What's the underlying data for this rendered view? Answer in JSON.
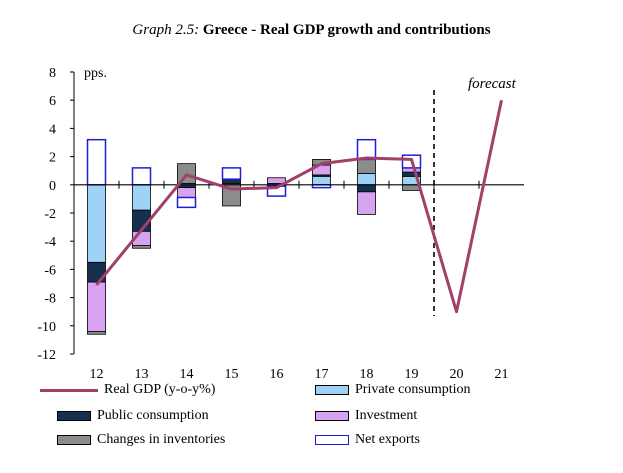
{
  "title": {
    "prefix": "Graph 2.5:",
    "main": "Greece - Real GDP growth and contributions"
  },
  "colors": {
    "real_gdp": "#a0416b",
    "private_consumption": "#9fd3f5",
    "public_consumption": "#17304d",
    "investment": "#d7a3f0",
    "changes_in_inventories": "#8c8c8c",
    "net_exports": "#1f1fd6"
  },
  "chart_data": {
    "type": "bar",
    "stacked": true,
    "title": "Greece - Real GDP growth and contributions",
    "ylabel": "pps.",
    "xlabel": "",
    "ylim": [
      -12,
      8
    ],
    "yticks": [
      8,
      6,
      4,
      2,
      0,
      -2,
      -4,
      -6,
      -8,
      -10,
      -12
    ],
    "categories": [
      "12",
      "13",
      "14",
      "15",
      "16",
      "17",
      "18",
      "19",
      "20",
      "21"
    ],
    "annotation": "forecast",
    "forecast_divider_after": "19",
    "series": [
      {
        "name": "Private consumption",
        "kind": "bar",
        "values": [
          -5.5,
          -1.8,
          0.1,
          0.1,
          0.1,
          0.6,
          0.8,
          0.6,
          null,
          null
        ]
      },
      {
        "name": "Public consumption",
        "kind": "bar",
        "values": [
          -1.4,
          -1.5,
          -0.2,
          0.3,
          -0.1,
          0.1,
          -0.5,
          0.3,
          null,
          null
        ]
      },
      {
        "name": "Investment",
        "kind": "bar",
        "values": [
          -3.5,
          -1.0,
          -0.7,
          0.0,
          0.4,
          0.7,
          -1.6,
          0.3,
          null,
          null
        ]
      },
      {
        "name": "Changes in inventories",
        "kind": "bar",
        "values": [
          -0.2,
          -0.2,
          1.4,
          -1.5,
          0.0,
          0.4,
          1.0,
          -0.4,
          null,
          null
        ]
      },
      {
        "name": "Net exports",
        "kind": "bar",
        "values": [
          3.2,
          1.2,
          -0.7,
          0.8,
          -0.7,
          -0.2,
          1.4,
          0.9,
          null,
          null
        ]
      },
      {
        "name": "Real GDP (y-o-y%)",
        "kind": "line",
        "values": [
          -7.1,
          -3.2,
          0.7,
          -0.3,
          -0.2,
          1.5,
          1.9,
          1.8,
          -9.0,
          6.0
        ]
      }
    ]
  },
  "legend": {
    "real_gdp": "Real GDP (y-o-y%)",
    "private_consumption": "Private consumption",
    "public_consumption": "Public consumption",
    "investment": "Investment",
    "changes_in_inventories": "Changes in inventories",
    "net_exports": "Net exports"
  }
}
